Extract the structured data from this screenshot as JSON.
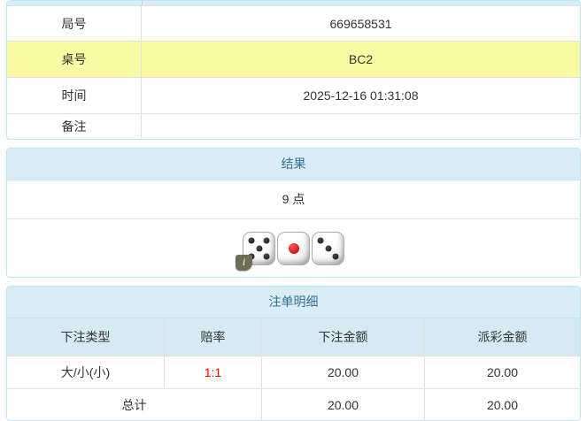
{
  "colors": {
    "panel_border": "#bce8f1",
    "heading_bg": "#d9edf7",
    "heading_text": "#31708f",
    "column_header_bg": "#d7eaf3",
    "highlight_row_bg": "#fafaa5",
    "odds_red": "#ff0000",
    "cell_border": "#e0e0e0",
    "info_badge_bg": "#6e6e55"
  },
  "game_info": {
    "rows": [
      {
        "label": "局号",
        "value": "669658531",
        "highlight": false
      },
      {
        "label": "桌号",
        "value": "BC2",
        "highlight": true
      },
      {
        "label": "时间",
        "value": "2025-12-16 01:31:08",
        "highlight": false
      },
      {
        "label": "备注",
        "value": "",
        "highlight": false
      }
    ]
  },
  "result_panel": {
    "title": "结果",
    "points": "9 点",
    "dice": [
      5,
      1,
      3
    ],
    "info_icon": "i"
  },
  "bets_panel": {
    "title": "注单明细",
    "columns": [
      "下注类型",
      "赔率",
      "下注金额",
      "派彩金额"
    ],
    "rows": [
      {
        "type": "大/小(小)",
        "odds": "1:1",
        "bet": "20.00",
        "payout": "20.00"
      }
    ],
    "total": {
      "label": "总计",
      "bet": "20.00",
      "payout": "20.00"
    }
  }
}
